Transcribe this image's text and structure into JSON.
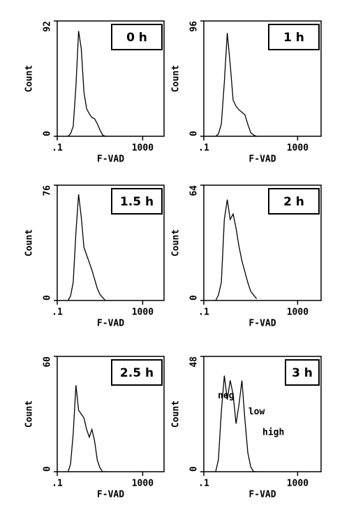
{
  "chart_data": [
    {
      "type": "line",
      "label": "0 h",
      "xlabel": "F-VAD",
      "ylabel": "Count",
      "xlog": true,
      "color": "#000000",
      "xlim": [
        0.1,
        10000
      ],
      "xticks": [
        {
          "value": 0.1,
          "label": ".1"
        },
        1000
      ],
      "ylim": [
        0,
        92
      ],
      "yticks": [
        0,
        92
      ],
      "x": [
        0.32,
        0.42,
        0.56,
        0.75,
        1,
        1.33,
        1.78,
        2.37,
        3.16,
        4.22,
        5.62,
        7.5,
        10,
        13.3,
        17.8
      ],
      "values": [
        0,
        2,
        8,
        40,
        84,
        70,
        35,
        22,
        18,
        15,
        14,
        10,
        5,
        1,
        0
      ]
    },
    {
      "type": "line",
      "label": "1 h",
      "xlabel": "F-VAD",
      "ylabel": "Count",
      "xlog": true,
      "color": "#000000",
      "xlim": [
        0.1,
        10000
      ],
      "xticks": [
        {
          "value": 0.1,
          "label": ".1"
        },
        1000
      ],
      "ylim": [
        0,
        96
      ],
      "yticks": [
        0,
        96
      ],
      "x": [
        0.32,
        0.42,
        0.56,
        0.75,
        1,
        1.33,
        1.78,
        2.37,
        3.16,
        4.22,
        5.62,
        7.5,
        10,
        13.3,
        17.8
      ],
      "values": [
        0,
        2,
        10,
        45,
        86,
        60,
        30,
        25,
        22,
        20,
        18,
        10,
        3,
        1,
        0
      ]
    },
    {
      "type": "line",
      "label": "1.5  h",
      "xlabel": "F-VAD",
      "ylabel": "Count",
      "xlog": true,
      "color": "#000000",
      "xlim": [
        0.1,
        10000
      ],
      "xticks": [
        {
          "value": 0.1,
          "label": ".1"
        },
        1000
      ],
      "ylim": [
        0,
        76
      ],
      "yticks": [
        0,
        76
      ],
      "x": [
        0.32,
        0.42,
        0.56,
        0.75,
        1,
        1.33,
        1.78,
        2.37,
        3.16,
        4.22,
        5.62,
        7.5,
        10,
        13.3,
        17.8
      ],
      "values": [
        0,
        3,
        12,
        45,
        70,
        55,
        35,
        30,
        25,
        20,
        14,
        8,
        4,
        2,
        0
      ]
    },
    {
      "type": "line",
      "label": "2 h",
      "xlabel": "F-VAD",
      "ylabel": "Count",
      "xlog": true,
      "color": "#000000",
      "xlim": [
        0.1,
        10000
      ],
      "xticks": [
        {
          "value": 0.1,
          "label": ".1"
        },
        1000
      ],
      "ylim": [
        0,
        64
      ],
      "yticks": [
        0,
        64
      ],
      "x": [
        0.32,
        0.42,
        0.56,
        0.75,
        1,
        1.33,
        1.78,
        2.37,
        3.16,
        4.22,
        5.62,
        7.5,
        10,
        13.3,
        17.8
      ],
      "values": [
        0,
        3,
        10,
        45,
        56,
        45,
        48,
        40,
        30,
        22,
        16,
        10,
        5,
        3,
        1
      ]
    },
    {
      "type": "line",
      "label": "2.5 h",
      "xlabel": "F-VAD",
      "ylabel": "Count",
      "xlog": true,
      "color": "#000000",
      "xlim": [
        0.1,
        10000
      ],
      "xticks": [
        {
          "value": 0.1,
          "label": ".1"
        },
        1000
      ],
      "ylim": [
        0,
        60
      ],
      "yticks": [
        0,
        60
      ],
      "x": [
        0.32,
        0.42,
        0.56,
        0.75,
        1,
        1.33,
        1.78,
        2.37,
        3.16,
        4.22,
        5.62,
        7.5,
        10,
        13.3,
        17.8
      ],
      "values": [
        0,
        4,
        20,
        45,
        32,
        30,
        28,
        22,
        18,
        22,
        16,
        6,
        2,
        0,
        0
      ]
    },
    {
      "type": "line",
      "label": "3 h",
      "xlabel": "F-VAD",
      "ylabel": "Count",
      "xlog": true,
      "color": "#000000",
      "xlim": [
        0.1,
        10000
      ],
      "xticks": [
        {
          "value": 0.1,
          "label": ".1"
        },
        1000
      ],
      "ylim": [
        0,
        48
      ],
      "yticks": [
        0,
        48
      ],
      "x": [
        0.32,
        0.42,
        0.56,
        0.75,
        1,
        1.33,
        1.78,
        2.37,
        3.16,
        4.22,
        5.62,
        7.5,
        10,
        13.3,
        17.8
      ],
      "values": [
        0,
        5,
        25,
        40,
        30,
        38,
        32,
        20,
        28,
        38,
        22,
        8,
        2,
        0,
        0
      ],
      "annotations": [
        "neg",
        "low",
        "high"
      ]
    }
  ]
}
